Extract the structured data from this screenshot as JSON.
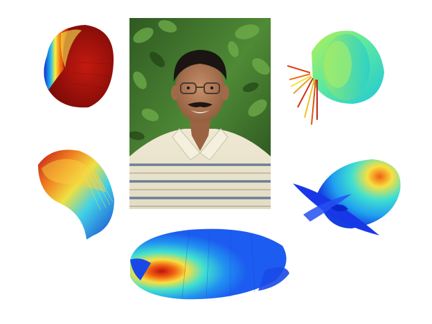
{
  "scene": {
    "background_color": "#ffffff",
    "photo": {
      "subject": "portrait-of-man"
    },
    "plots": [
      {
        "id": "top-left",
        "colormap": "jet",
        "dominant_color": "#c01010"
      },
      {
        "id": "top-right",
        "colormap": "jet",
        "dominant_color": "#5ee8a0"
      },
      {
        "id": "middle-left",
        "colormap": "jet",
        "dominant_color": "#2a9ee8"
      },
      {
        "id": "middle-right",
        "colormap": "jet",
        "dominant_color": "#28a8f0"
      },
      {
        "id": "bottom",
        "colormap": "jet",
        "dominant_color": "#1c5cf0"
      }
    ]
  }
}
